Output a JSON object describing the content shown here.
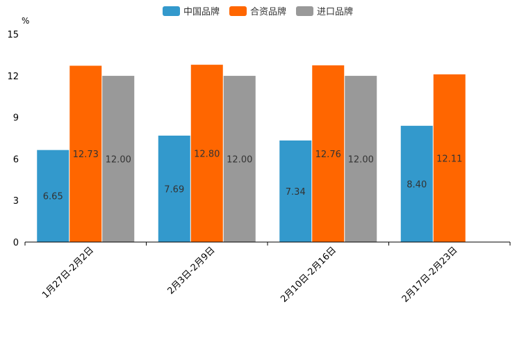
{
  "chart_data": {
    "type": "bar",
    "unit_label": "%",
    "categories": [
      "1月27日-2月2日",
      "2月3日-2月9日",
      "2月10日-2月16日",
      "2月17日-2月23日"
    ],
    "series": [
      {
        "name": "中国品牌",
        "color": "#3399cc",
        "values": [
          6.65,
          7.69,
          7.34,
          8.4
        ],
        "labels": [
          "6.65",
          "7.69",
          "7.34",
          "8.40"
        ]
      },
      {
        "name": "合资品牌",
        "color": "#ff6600",
        "values": [
          12.73,
          12.8,
          12.76,
          12.11
        ],
        "labels": [
          "12.73",
          "12.80",
          "12.76",
          "12.11"
        ]
      },
      {
        "name": "进口品牌",
        "color": "#999999",
        "values": [
          12.0,
          12.0,
          12.0,
          null
        ],
        "labels": [
          "12.00",
          "12.00",
          "12.00",
          ""
        ]
      }
    ],
    "ylim": [
      0,
      15
    ],
    "yticks": [
      "0",
      "3",
      "6",
      "9",
      "12",
      "15"
    ],
    "legend_position": "top-center"
  }
}
